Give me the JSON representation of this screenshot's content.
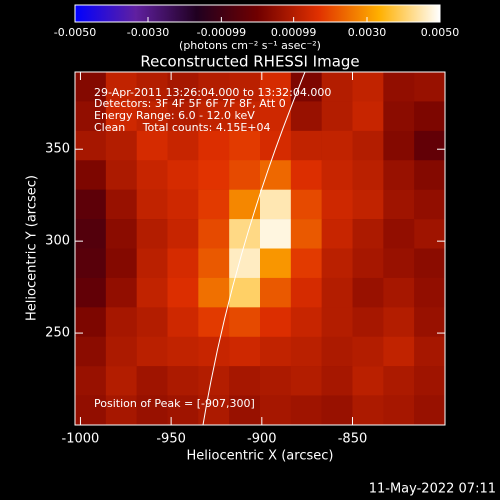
{
  "chart_data": {
    "type": "heatmap",
    "title": "Reconstructed RHESSI Image",
    "x_label": "Heliocentric X (arcsec)",
    "y_label": "Heliocentric Y (arcsec)",
    "colorbar_label": "(photons cm⁻² s⁻¹ asec⁻²)",
    "footer": "11-May-2022 07:11",
    "annotations": [
      "29-Apr-2011 13:26:04.000 to 13:32:04.000",
      "Detectors: 3F 4F 5F 6F 7F 8F, Att 0",
      "Energy Range: 6.0 - 12.0 keV",
      "Clean     Total counts: 4.15E+04"
    ],
    "peak_label": "Position of Peak = [-907,300]",
    "x": [
      -994.5,
      -977.5,
      -960.5,
      -943.5,
      -926.5,
      -909.5,
      -892.5,
      -875.5,
      -858.5,
      -841.5,
      -824.5,
      -807.5
    ],
    "y": [
      384,
      368,
      352,
      336,
      320,
      304,
      288,
      272,
      256,
      240,
      224,
      208
    ],
    "z": [
      [
        0.0003,
        0.0012,
        0.001,
        0.0008,
        0.001,
        0.0011,
        0.0015,
        0.0002,
        0.001,
        0.0012,
        0.0005,
        0.0006
      ],
      [
        0.0005,
        0.0014,
        0.0012,
        0.001,
        0.0012,
        0.0013,
        0.0014,
        0.0006,
        0.001,
        0.0013,
        0.0004,
        0.0002
      ],
      [
        0.0008,
        0.001,
        0.0015,
        0.0013,
        0.0016,
        0.0018,
        0.0015,
        0.0012,
        0.0012,
        0.001,
        0.0003,
        -0.0003
      ],
      [
        0.0002,
        0.0009,
        0.0013,
        0.0015,
        0.0017,
        0.002,
        0.0024,
        0.0016,
        0.0013,
        0.0011,
        0.0006,
        0.0003
      ],
      [
        -0.0004,
        0.0006,
        0.0012,
        0.0014,
        0.0018,
        0.0028,
        0.0045,
        0.002,
        0.0014,
        0.0012,
        0.0007,
        0.0005
      ],
      [
        -0.0006,
        0.0004,
        0.001,
        0.0013,
        0.002,
        0.0042,
        0.0048,
        0.0022,
        0.0013,
        0.0009,
        0.0005,
        0.0007
      ],
      [
        -0.0005,
        0.0003,
        0.0011,
        0.0015,
        0.0022,
        0.0046,
        0.003,
        0.0018,
        0.0011,
        0.0008,
        0.0006,
        0.0004
      ],
      [
        -0.0003,
        0.0005,
        0.0012,
        0.0016,
        0.0025,
        0.004,
        0.0022,
        0.0015,
        0.001,
        0.0006,
        0.0008,
        0.0005
      ],
      [
        0.0002,
        0.0008,
        0.001,
        0.0014,
        0.0018,
        0.002,
        0.0016,
        0.0013,
        0.001,
        0.0008,
        0.001,
        0.0006
      ],
      [
        0.0004,
        0.0009,
        0.0011,
        0.0012,
        0.0013,
        0.0014,
        0.0012,
        0.0011,
        0.0009,
        0.001,
        0.0012,
        0.0008
      ],
      [
        0.0006,
        0.001,
        0.0007,
        0.0009,
        0.001,
        0.0008,
        0.0009,
        0.001,
        0.0008,
        0.0011,
        0.0009,
        0.0007
      ],
      [
        0.0005,
        0.0008,
        0.0006,
        0.0007,
        0.0009,
        0.0006,
        0.0008,
        0.0007,
        0.0006,
        0.0009,
        0.0008,
        0.0006
      ]
    ],
    "xlim": [
      -1003,
      -799
    ],
    "ylim": [
      200,
      392
    ],
    "xticks": [
      -1000,
      -950,
      -900,
      -850
    ],
    "yticks": [
      250,
      300,
      350
    ],
    "zlim": [
      -0.005,
      0.005
    ],
    "zticks": [
      {
        "value": -0.005,
        "label": "-0.0050"
      },
      {
        "value": -0.003,
        "label": "-0.0030"
      },
      -0.00099,
      0.00099,
      {
        "value": 0.003,
        "label": "0.0030"
      },
      {
        "value": 0.005,
        "label": "0.0050"
      }
    ],
    "colormap": [
      "#0000ff",
      "#6020a0",
      "#200020",
      "#700000",
      "#e03000",
      "#ffb000",
      "#ffffff"
    ]
  }
}
